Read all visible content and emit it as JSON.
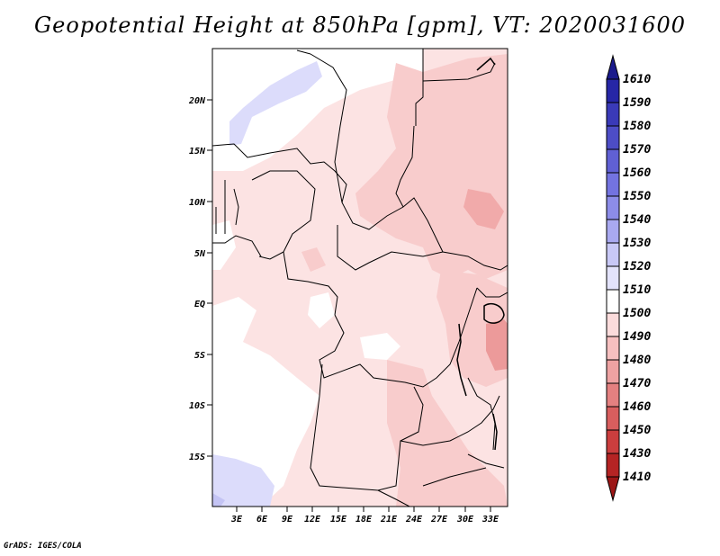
{
  "title": "Geopotential Height at 850hPa [gpm], VT: 2020031600",
  "credit": "GrADS: IGES/COLA",
  "lat_labels": [
    "20N",
    "15N",
    "10N",
    "5N",
    "EQ",
    "5S",
    "10S",
    "15S"
  ],
  "lon_labels": [
    "3E",
    "6E",
    "9E",
    "12E",
    "15E",
    "18E",
    "21E",
    "24E",
    "27E",
    "30E",
    "33E"
  ],
  "colorbar": {
    "labels": [
      "1610",
      "1590",
      "1580",
      "1570",
      "1560",
      "1550",
      "1540",
      "1530",
      "1520",
      "1510",
      "1500",
      "1490",
      "1480",
      "1470",
      "1460",
      "1450",
      "1430",
      "1410"
    ],
    "colors": [
      "#1a1a8c",
      "#2626a6",
      "#3a3ab8",
      "#4d4dc6",
      "#6060d4",
      "#7373e0",
      "#8c8ce8",
      "#a9a9f0",
      "#c8c8f6",
      "#e3e3fb",
      "#ffffff",
      "#fbdcdc",
      "#f6c0c0",
      "#eea2a2",
      "#e48080",
      "#d85e5e",
      "#cb3e3e",
      "#b52424",
      "#9c1616"
    ]
  }
}
